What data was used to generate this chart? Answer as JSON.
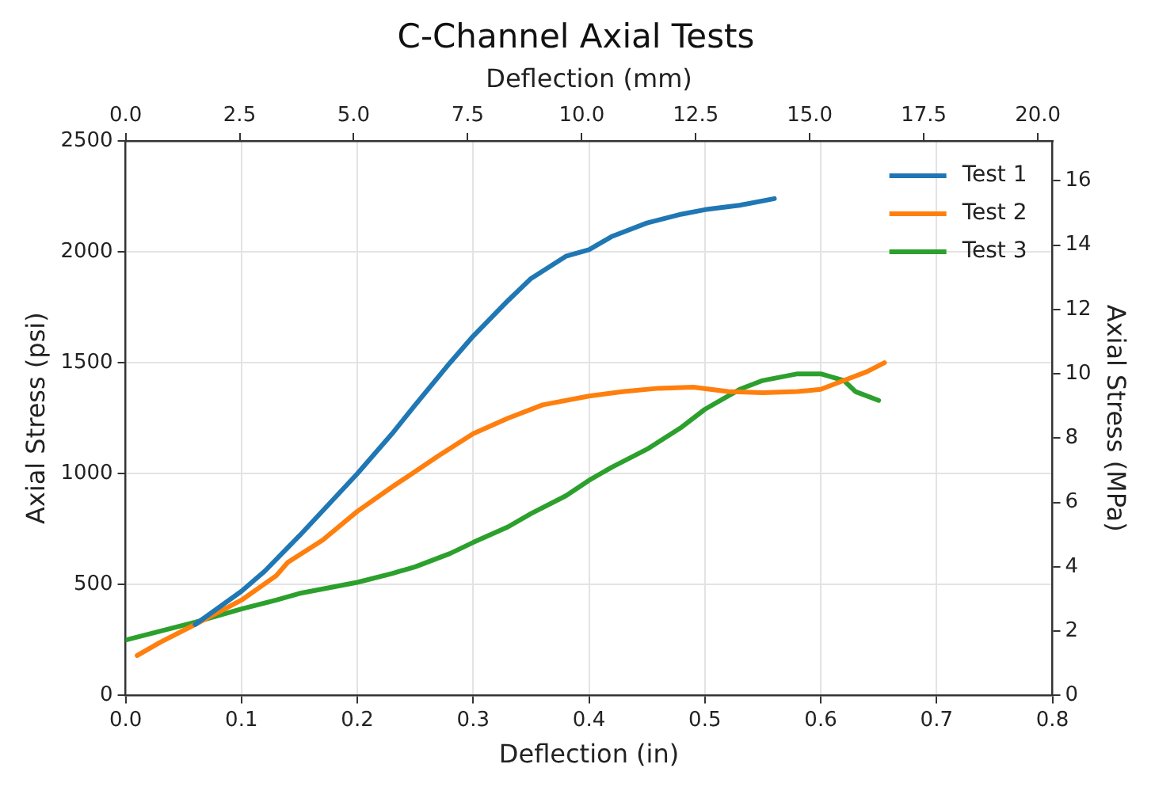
{
  "chart_data": {
    "type": "line",
    "title": "C-Channel Axial Tests",
    "xlabel": "Deflection (in)",
    "ylabel": "Axial Stress (psi)",
    "x2label": "Deflection (mm)",
    "y2label": "Axial Stress (MPa)",
    "xlim": [
      0,
      0.8
    ],
    "xticks": [
      {
        "value": 0,
        "label": "0.0"
      },
      0.1,
      0.2,
      0.3,
      0.4,
      0.5,
      0.6,
      0.7,
      0.8
    ],
    "ylim": [
      0,
      2500
    ],
    "yticks": [
      0,
      500,
      1000,
      1500,
      2000,
      2500
    ],
    "x2lim": [
      0,
      20.32
    ],
    "x2ticks": [
      {
        "value": 0,
        "label": "0.0"
      },
      2.5,
      {
        "value": 5,
        "label": "5.0"
      },
      7.5,
      {
        "value": 10,
        "label": "10.0"
      },
      12.5,
      {
        "value": 15,
        "label": "15.0"
      },
      17.5,
      {
        "value": 20,
        "label": "20.0"
      }
    ],
    "y2lim": [
      0,
      17.24
    ],
    "y2ticks": [
      0,
      2,
      4,
      6,
      8,
      10,
      12,
      14,
      16
    ],
    "grid": true,
    "legend": "top right",
    "marker": "none",
    "line_style": "solid",
    "series": [
      {
        "name": "Test 1",
        "color": "#1f77b4",
        "x": [
          0.06,
          0.1,
          0.12,
          0.15,
          0.2,
          0.23,
          0.25,
          0.28,
          0.3,
          0.33,
          0.35,
          0.38,
          0.4,
          0.42,
          0.45,
          0.48,
          0.5,
          0.53,
          0.56
        ],
        "values": [
          320,
          470,
          560,
          720,
          1000,
          1180,
          1310,
          1500,
          1620,
          1780,
          1880,
          1980,
          2010,
          2070,
          2130,
          2170,
          2190,
          2210,
          2240
        ]
      },
      {
        "name": "Test 2",
        "color": "#ff7f0e",
        "x": [
          0.01,
          0.03,
          0.06,
          0.1,
          0.13,
          0.14,
          0.17,
          0.2,
          0.23,
          0.25,
          0.27,
          0.3,
          0.33,
          0.36,
          0.4,
          0.43,
          0.46,
          0.49,
          0.52,
          0.55,
          0.58,
          0.6,
          0.62,
          0.64,
          0.655
        ],
        "values": [
          180,
          240,
          320,
          430,
          540,
          600,
          700,
          830,
          940,
          1010,
          1080,
          1180,
          1250,
          1310,
          1350,
          1370,
          1385,
          1390,
          1370,
          1365,
          1370,
          1380,
          1420,
          1460,
          1500
        ]
      },
      {
        "name": "Test 3",
        "color": "#2ca02c",
        "x": [
          0,
          0.03,
          0.06,
          0.1,
          0.13,
          0.15,
          0.2,
          0.23,
          0.25,
          0.28,
          0.3,
          0.33,
          0.35,
          0.38,
          0.4,
          0.42,
          0.45,
          0.48,
          0.5,
          0.53,
          0.55,
          0.58,
          0.6,
          0.62,
          0.63,
          0.65
        ],
        "values": [
          250,
          290,
          330,
          390,
          430,
          460,
          510,
          550,
          580,
          640,
          690,
          760,
          820,
          900,
          970,
          1030,
          1110,
          1210,
          1290,
          1380,
          1420,
          1450,
          1450,
          1420,
          1370,
          1330
        ]
      }
    ]
  }
}
